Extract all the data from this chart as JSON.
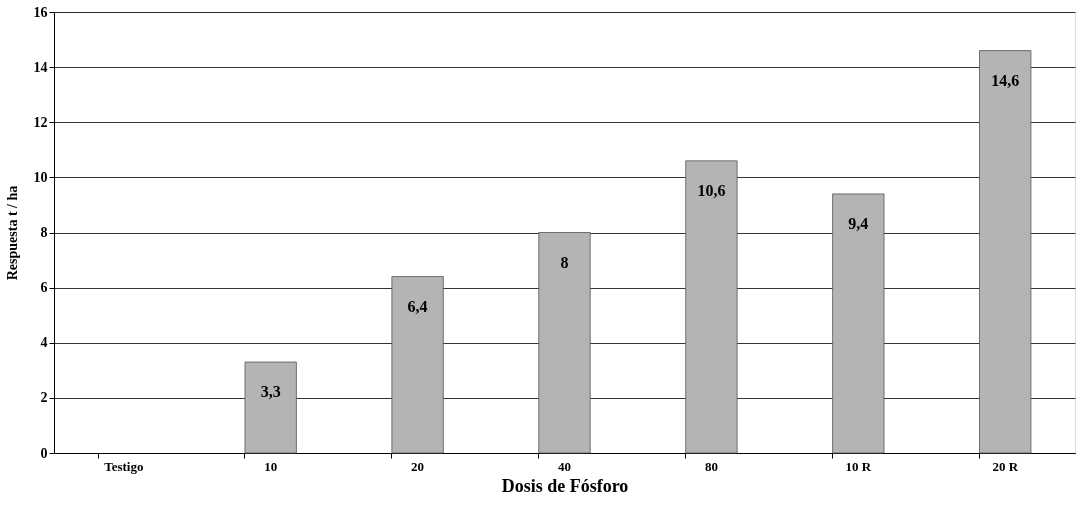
{
  "chart_data": {
    "type": "bar",
    "xlabel": "Dosis de Fósforo",
    "ylabel": "Respuesta t / ha",
    "categories": [
      "Testigo",
      "10",
      "20",
      "40",
      "80",
      "10 R",
      "20 R"
    ],
    "values": [
      null,
      3.3,
      6.4,
      8,
      10.6,
      9.4,
      14.6
    ],
    "value_labels": [
      null,
      "3,3",
      "6,4",
      "8",
      "10,6",
      "9,4",
      "14,6"
    ],
    "color": "#b4b4b4",
    "ylim": [
      0,
      16
    ],
    "yticks": [
      0,
      2,
      4,
      6,
      8,
      10,
      12,
      14,
      16
    ],
    "grid": "y"
  }
}
